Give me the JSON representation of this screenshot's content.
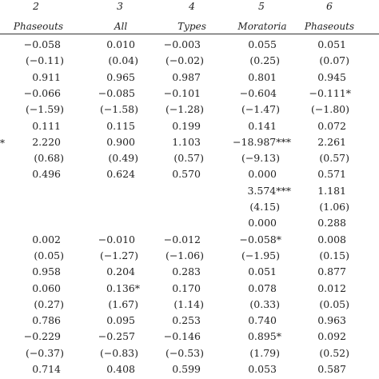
{
  "header": {
    "col_numbers": [
      "2",
      "3",
      "4",
      "5",
      "6"
    ],
    "col_labels": [
      "Phaseouts",
      "All",
      "Types",
      "Moratoria",
      "Phaseouts"
    ]
  },
  "left_marks": [
    "*"
  ],
  "rows": [
    [
      "−0.058",
      "0.010",
      "−0.003",
      "0.055",
      "0.051"
    ],
    [
      "(−0.11)",
      "(0.04)",
      "(−0.02)",
      "(0.25)",
      "(0.07)"
    ],
    [
      "0.911",
      "0.965",
      "0.987",
      "0.801",
      "0.945"
    ],
    [
      "−0.066",
      "−0.085",
      "−0.101",
      "−0.604",
      "−0.111*"
    ],
    [
      "(−1.59)",
      "(−1.58)",
      "(−1.28)",
      "(−1.47)",
      "(−1.80)"
    ],
    [
      "0.111",
      "0.115",
      "0.199",
      "0.141",
      "0.072"
    ],
    [
      "2.220",
      "0.900",
      "1.103",
      "−18.987***",
      "2.261"
    ],
    [
      "(0.68)",
      "(0.49)",
      "(0.57)",
      "(−9.13)",
      "(0.57)"
    ],
    [
      "0.496",
      "0.624",
      "0.570",
      "0.000",
      "0.571"
    ],
    [
      "",
      "",
      "",
      "3.574***",
      "1.181"
    ],
    [
      "",
      "",
      "",
      "(4.15)",
      "(1.06)"
    ],
    [
      "",
      "",
      "",
      "0.000",
      "0.288"
    ],
    [
      "0.002",
      "−0.010",
      "−0.012",
      "−0.058*",
      "0.008"
    ],
    [
      "(0.05)",
      "(−1.27)",
      "(−1.06)",
      "(−1.95)",
      "(0.15)"
    ],
    [
      "0.958",
      "0.204",
      "0.283",
      "0.051",
      "0.877"
    ],
    [
      "0.060",
      "0.136*",
      "0.170",
      "0.078",
      "0.012"
    ],
    [
      "(0.27)",
      "(1.67)",
      "(1.14)",
      "(0.33)",
      "(0.05)"
    ],
    [
      "0.786",
      "0.095",
      "0.253",
      "0.740",
      "0.963"
    ],
    [
      "−0.229",
      "−0.257",
      "−0.146",
      "0.895*",
      "0.092"
    ],
    [
      "(−0.37)",
      "(−0.83)",
      "(−0.53)",
      "(1.79)",
      "(0.52)"
    ],
    [
      "0.714",
      "0.408",
      "0.599",
      "0.053",
      "0.587"
    ]
  ]
}
